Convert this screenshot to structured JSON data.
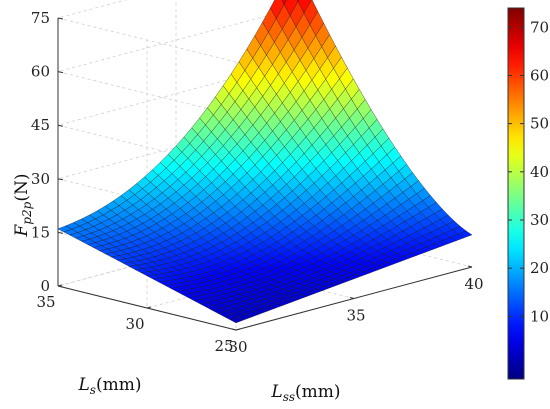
{
  "chart_data": {
    "type": "surface",
    "title": "",
    "xlabel": {
      "symbol": "L",
      "sub": "ss",
      "unit": "(mm)"
    },
    "ylabel": {
      "symbol": "L",
      "sub": "s",
      "unit": "(mm)"
    },
    "zlabel": {
      "symbol": "F",
      "sub": "p2p",
      "unit": "(N)"
    },
    "x_range": [
      30,
      40
    ],
    "y_range": [
      25,
      35
    ],
    "z_range": [
      0,
      75
    ],
    "x_ticks": [
      30,
      35,
      40
    ],
    "y_ticks": [
      25,
      30,
      35
    ],
    "z_ticks": [
      0,
      15,
      30,
      45,
      60,
      75
    ],
    "corner_values": {
      "Lss30_Ls25": 2,
      "Lss30_Ls35": 16,
      "Lss40_Ls25": 9,
      "Lss40_Ls35": 73
    },
    "colorbar": {
      "range": [
        -3,
        74
      ],
      "ticks": [
        10,
        20,
        30,
        40,
        50,
        60,
        70
      ],
      "colormap": "jet"
    },
    "grid": true,
    "mesh_resolution": 30
  }
}
